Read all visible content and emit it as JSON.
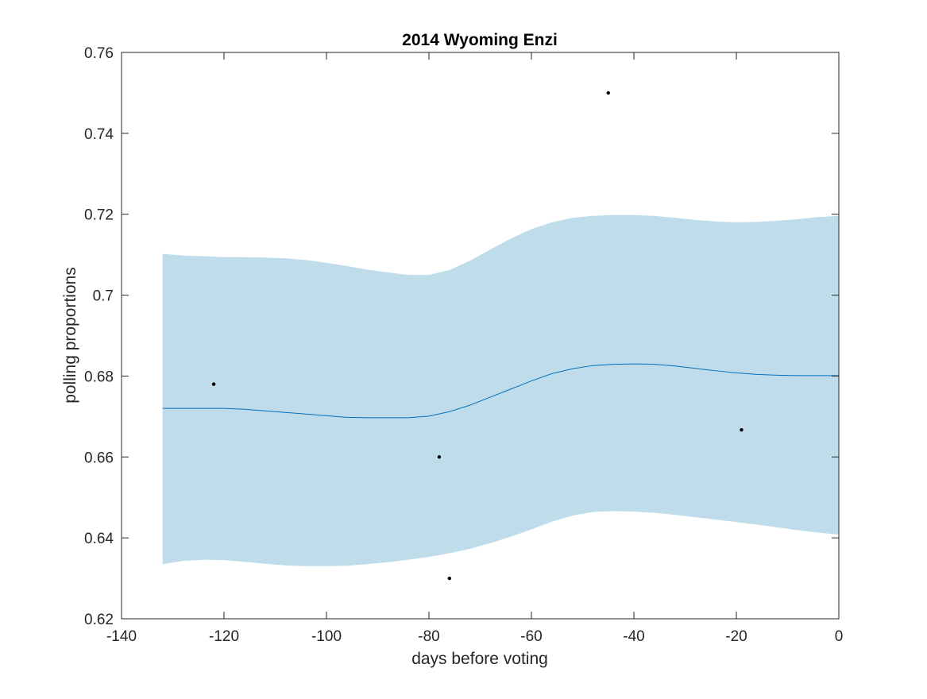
{
  "chart_data": {
    "type": "line",
    "title": "2014 Wyoming Enzi",
    "xlabel": "days before voting",
    "ylabel": "polling proportions",
    "xlim": [
      -140,
      0
    ],
    "ylim": [
      0.62,
      0.76
    ],
    "xticks": [
      -140,
      -120,
      -100,
      -80,
      -60,
      -40,
      -20,
      0
    ],
    "xtick_labels": [
      "-140",
      "-120",
      "-100",
      "-80",
      "-60",
      "-40",
      "-20",
      "0"
    ],
    "yticks": [
      0.62,
      0.64,
      0.66,
      0.68,
      0.7,
      0.72,
      0.74,
      0.76
    ],
    "ytick_labels": [
      "0.62",
      "0.64",
      "0.66",
      "0.68",
      "0.7",
      "0.72",
      "0.74",
      "0.76"
    ],
    "grid": false,
    "fit_line": {
      "x": [
        -132,
        -128,
        -124,
        -120,
        -116,
        -112,
        -108,
        -104,
        -100,
        -96,
        -92,
        -88,
        -84,
        -80,
        -76,
        -72,
        -68,
        -64,
        -60,
        -56,
        -52,
        -48,
        -44,
        -40,
        -36,
        -32,
        -28,
        -24,
        -20,
        -16,
        -12,
        -8,
        -4,
        0
      ],
      "y": [
        0.672,
        0.672,
        0.672,
        0.672,
        0.6718,
        0.6714,
        0.671,
        0.6706,
        0.6702,
        0.6698,
        0.6697,
        0.6697,
        0.6697,
        0.6701,
        0.6712,
        0.6728,
        0.6748,
        0.6768,
        0.6788,
        0.6806,
        0.6818,
        0.6826,
        0.6829,
        0.683,
        0.6829,
        0.6825,
        0.6819,
        0.6813,
        0.6808,
        0.6804,
        0.6802,
        0.6801,
        0.6801,
        0.6801
      ],
      "color": "#0072BD"
    },
    "confidence_band": {
      "x": [
        -132,
        -128,
        -124,
        -120,
        -116,
        -112,
        -108,
        -104,
        -100,
        -96,
        -92,
        -88,
        -84,
        -80,
        -76,
        -72,
        -68,
        -64,
        -60,
        -56,
        -52,
        -48,
        -44,
        -40,
        -36,
        -32,
        -28,
        -24,
        -20,
        -16,
        -12,
        -8,
        -4,
        0
      ],
      "upper": [
        0.7102,
        0.7098,
        0.7096,
        0.7094,
        0.7094,
        0.7093,
        0.7091,
        0.7087,
        0.708,
        0.7072,
        0.7063,
        0.7056,
        0.705,
        0.705,
        0.7062,
        0.7085,
        0.7113,
        0.714,
        0.7163,
        0.718,
        0.7191,
        0.7196,
        0.7198,
        0.7198,
        0.7196,
        0.7191,
        0.7186,
        0.7182,
        0.718,
        0.7181,
        0.7184,
        0.7188,
        0.7193,
        0.7196
      ],
      "lower": [
        0.6335,
        0.6343,
        0.6346,
        0.6345,
        0.6341,
        0.6336,
        0.6332,
        0.633,
        0.633,
        0.6331,
        0.6335,
        0.634,
        0.6346,
        0.6353,
        0.6362,
        0.6373,
        0.6387,
        0.6403,
        0.6421,
        0.644,
        0.6455,
        0.6464,
        0.6466,
        0.6465,
        0.6462,
        0.6457,
        0.6451,
        0.6445,
        0.6439,
        0.6433,
        0.6426,
        0.6419,
        0.6413,
        0.6408
      ],
      "color": "#BFDCEA"
    },
    "points": {
      "x": [
        -122,
        -78,
        -76,
        -45,
        -19
      ],
      "y": [
        0.678,
        0.66,
        0.63,
        0.75,
        0.6667
      ],
      "color": "#000000"
    }
  }
}
